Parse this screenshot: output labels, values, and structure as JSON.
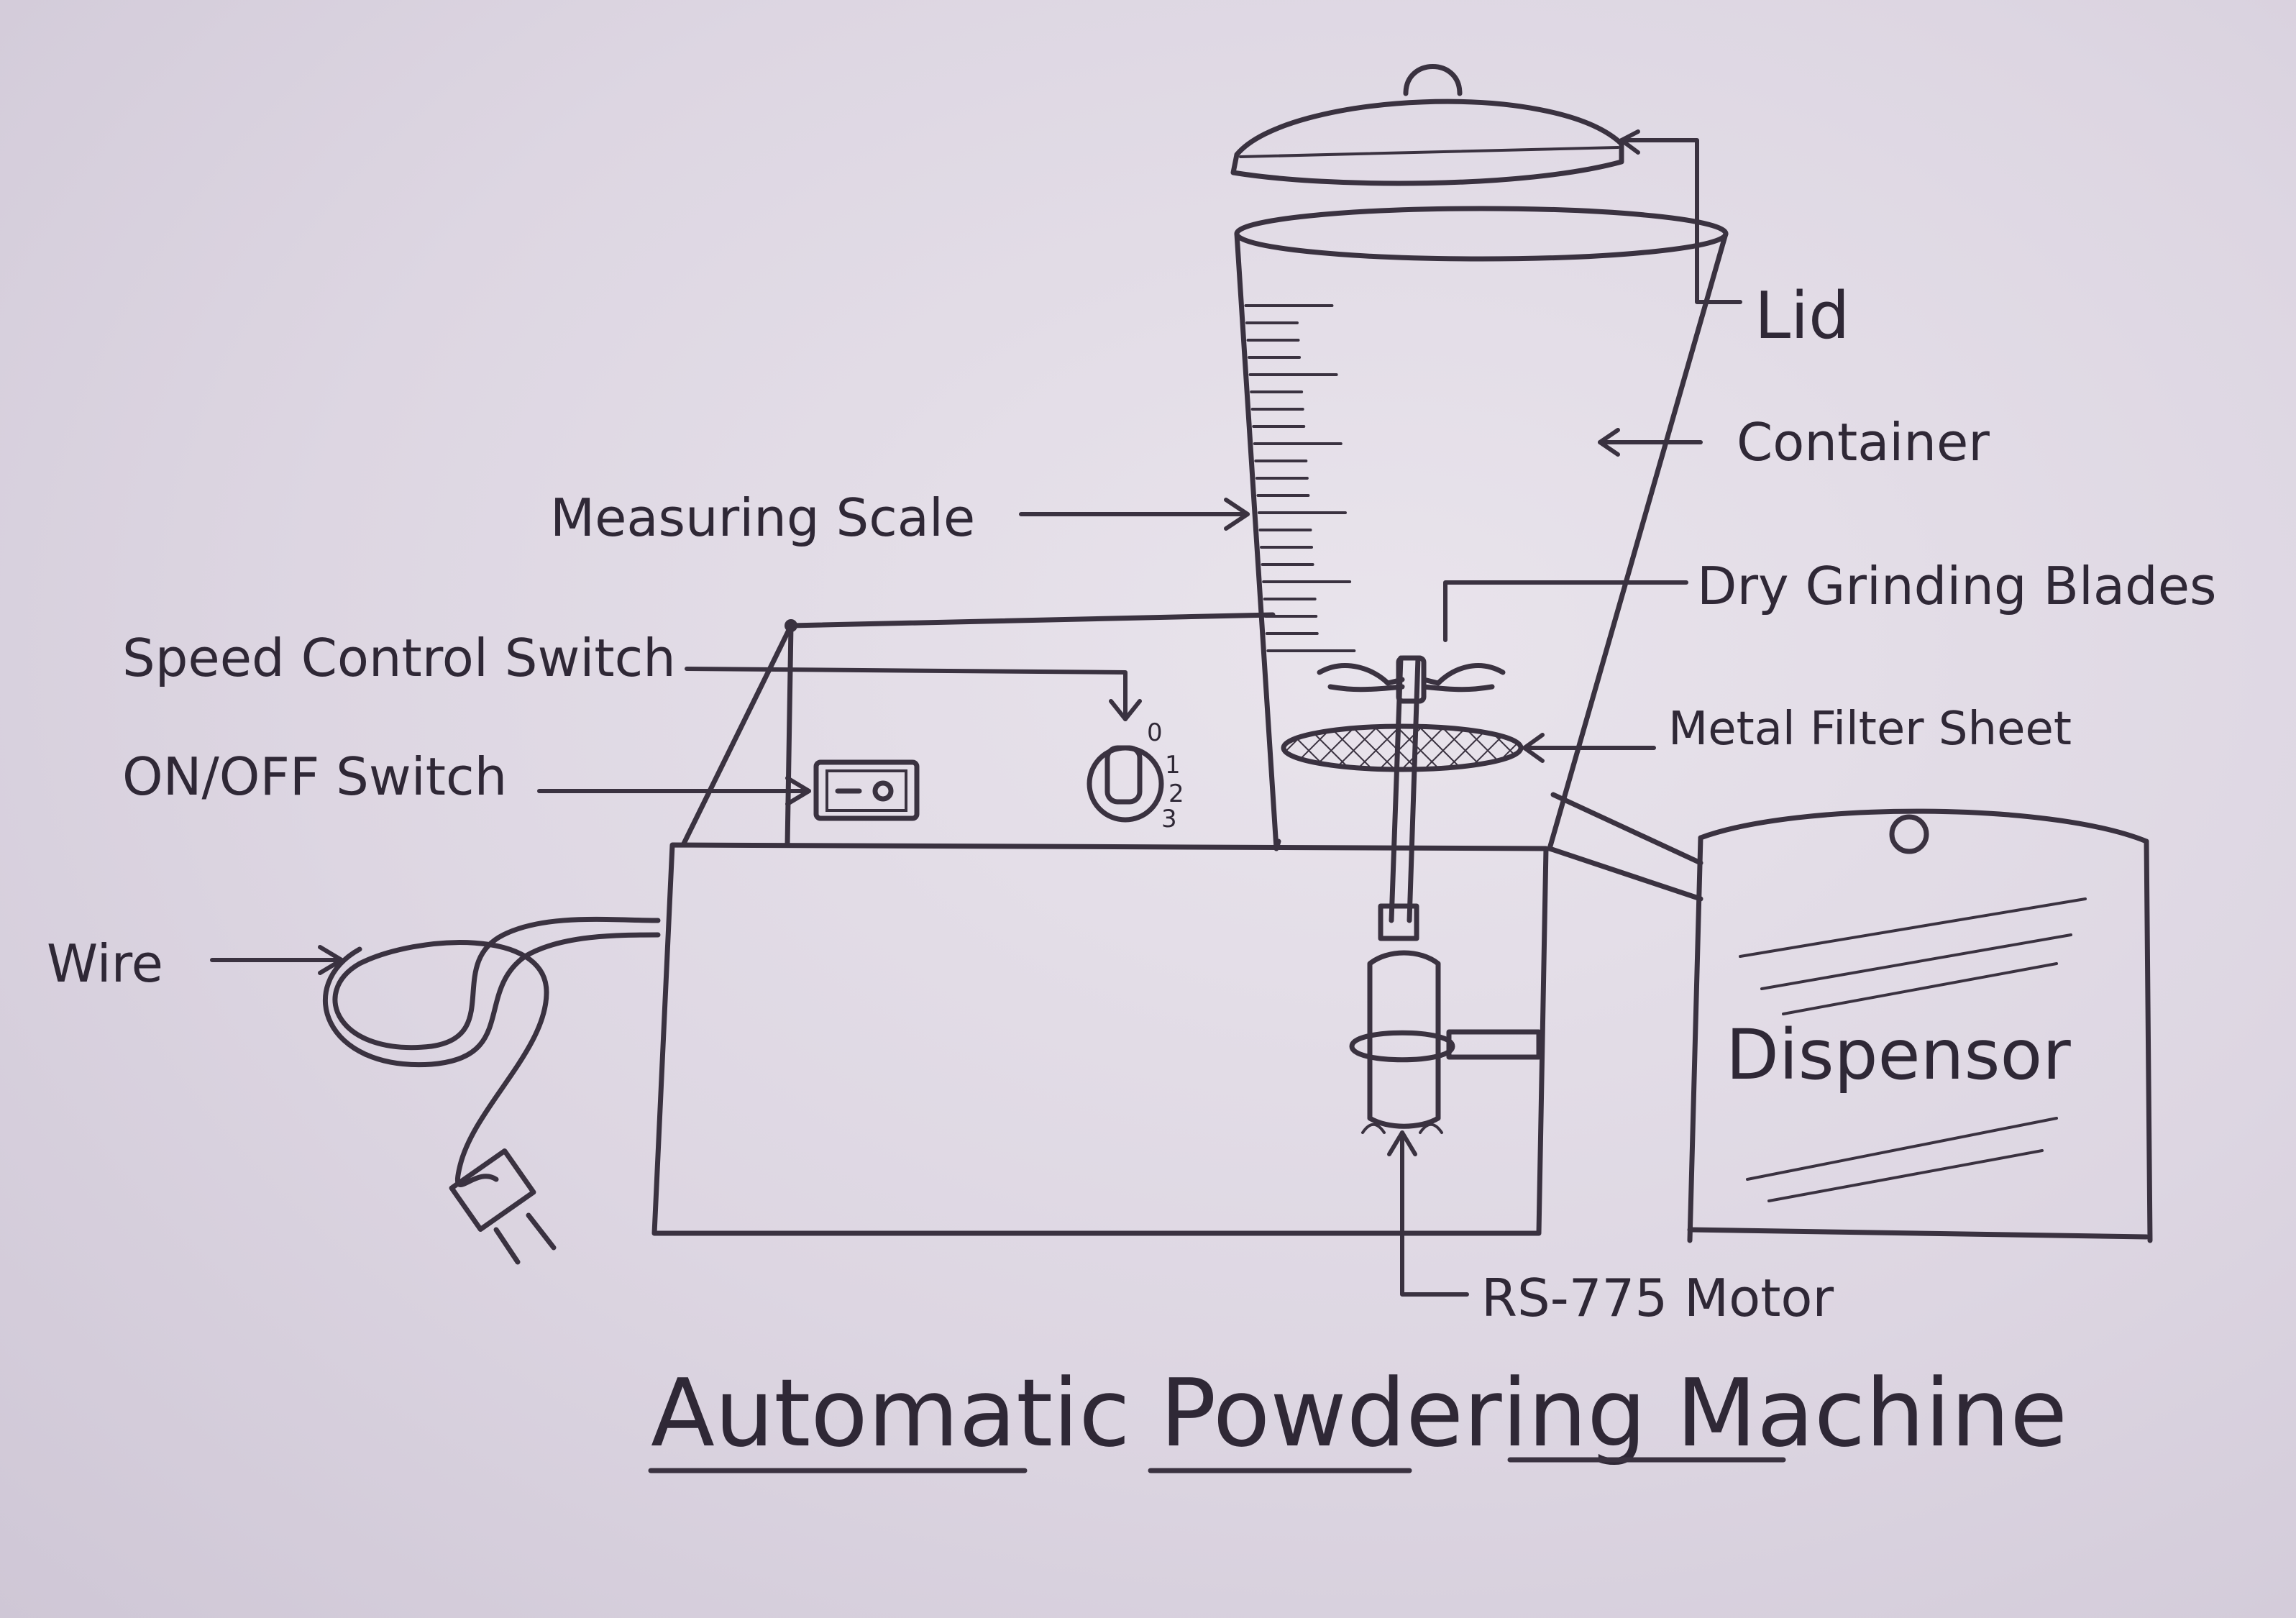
{
  "labels": {
    "lid": "Lid",
    "container": "Container",
    "measuring_scale": "Measuring Scale",
    "dry_grinding_blades": "Dry Grinding Blades",
    "speed_control_switch": "Speed Control Switch",
    "metal_filter_sheet": "Metal Filter Sheet",
    "on_off_switch": "ON/OFF Switch",
    "wire": "Wire",
    "dispensor": "Dispensor",
    "motor": "RS-775 Motor"
  },
  "speed_marks": [
    "0",
    "1",
    "2",
    "3"
  ],
  "title": "Automatic Powdering Machine",
  "colors": {
    "paper": "#ddd6e2",
    "pencil": "#3a3240"
  }
}
